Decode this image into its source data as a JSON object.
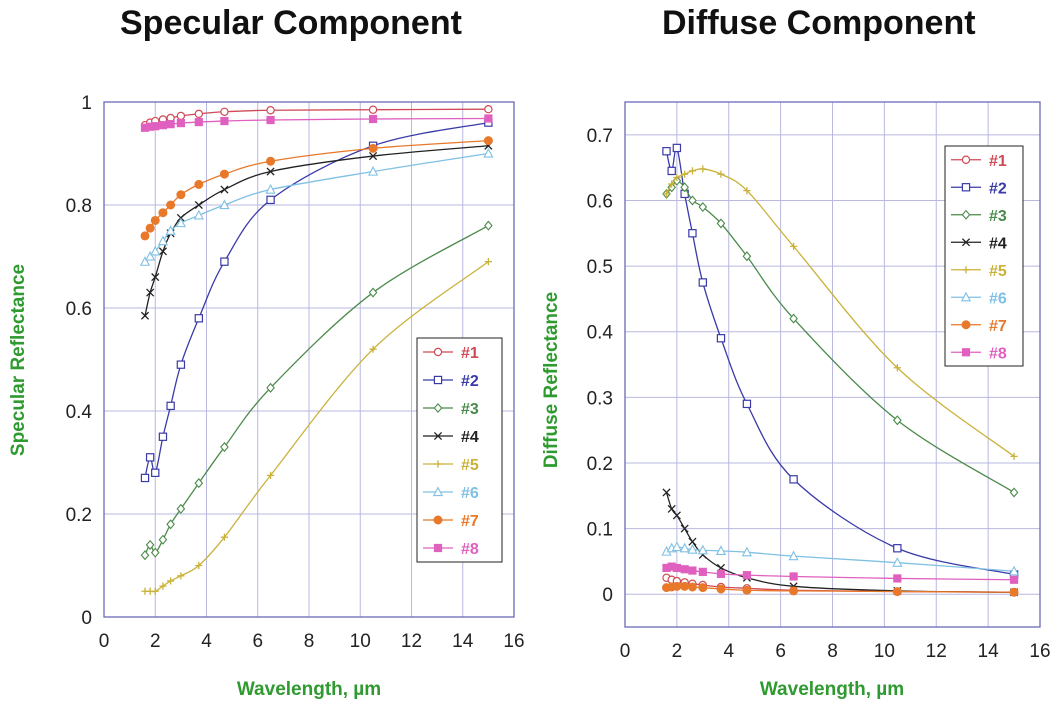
{
  "titles": {
    "left": "Specular Component",
    "right": "Diffuse Component"
  },
  "chart_data": [
    {
      "type": "line",
      "title": "Specular Component",
      "xlabel": "Wavelength, µm",
      "ylabel": "Specular Reflectance",
      "xlim": [
        0,
        16
      ],
      "ylim": [
        0,
        1
      ],
      "xticks": [
        0,
        2,
        4,
        6,
        8,
        10,
        12,
        14,
        16
      ],
      "yticks": [
        0,
        0.2,
        0.4,
        0.6,
        0.8,
        1
      ],
      "ytick_labels": [
        "0",
        "0.2",
        "0.4",
        "0.6",
        "0.8",
        "1"
      ],
      "grid": true,
      "legend_position": "right-middle",
      "series": [
        {
          "name": "#1",
          "color": "#d04a55",
          "marker": "circle-open",
          "x": [
            1.6,
            1.8,
            2.0,
            2.3,
            2.6,
            3.0,
            3.7,
            4.7,
            6.5,
            10.5,
            15.0
          ],
          "y": [
            0.955,
            0.96,
            0.963,
            0.966,
            0.969,
            0.973,
            0.977,
            0.981,
            0.984,
            0.985,
            0.986
          ]
        },
        {
          "name": "#2",
          "color": "#3a3aa8",
          "marker": "square-open",
          "x": [
            1.6,
            1.8,
            2.0,
            2.3,
            2.6,
            3.0,
            3.7,
            4.7,
            6.5,
            10.5,
            15.0
          ],
          "y": [
            0.27,
            0.31,
            0.28,
            0.35,
            0.41,
            0.49,
            0.58,
            0.69,
            0.81,
            0.915,
            0.96
          ]
        },
        {
          "name": "#3",
          "color": "#4a8a4a",
          "marker": "diamond-open",
          "x": [
            1.6,
            1.8,
            2.0,
            2.3,
            2.6,
            3.0,
            3.7,
            4.7,
            6.5,
            10.5,
            15.0
          ],
          "y": [
            0.12,
            0.14,
            0.125,
            0.15,
            0.18,
            0.21,
            0.26,
            0.33,
            0.445,
            0.63,
            0.76
          ]
        },
        {
          "name": "#4",
          "color": "#222222",
          "marker": "x",
          "x": [
            1.6,
            1.8,
            2.0,
            2.3,
            2.6,
            3.0,
            3.7,
            4.7,
            6.5,
            10.5,
            15.0
          ],
          "y": [
            0.585,
            0.63,
            0.66,
            0.71,
            0.745,
            0.775,
            0.8,
            0.83,
            0.865,
            0.895,
            0.915
          ]
        },
        {
          "name": "#5",
          "color": "#c9b23a",
          "marker": "plus",
          "x": [
            1.6,
            1.8,
            2.0,
            2.3,
            2.6,
            3.0,
            3.7,
            4.7,
            6.5,
            10.5,
            15.0
          ],
          "y": [
            0.05,
            0.05,
            0.05,
            0.06,
            0.07,
            0.08,
            0.1,
            0.155,
            0.275,
            0.52,
            0.69
          ]
        },
        {
          "name": "#6",
          "color": "#7fc0e3",
          "marker": "triangle-open",
          "x": [
            1.6,
            1.8,
            2.0,
            2.3,
            2.6,
            3.0,
            3.7,
            4.7,
            6.5,
            10.5,
            15.0
          ],
          "y": [
            0.69,
            0.7,
            0.71,
            0.73,
            0.75,
            0.765,
            0.78,
            0.8,
            0.83,
            0.865,
            0.9
          ]
        },
        {
          "name": "#7",
          "color": "#e8782a",
          "marker": "circle-filled",
          "x": [
            1.6,
            1.8,
            2.0,
            2.3,
            2.6,
            3.0,
            3.7,
            4.7,
            6.5,
            10.5,
            15.0
          ],
          "y": [
            0.74,
            0.755,
            0.77,
            0.785,
            0.8,
            0.82,
            0.84,
            0.86,
            0.885,
            0.91,
            0.925
          ]
        },
        {
          "name": "#8",
          "color": "#e060c0",
          "marker": "square-filled",
          "x": [
            1.6,
            1.8,
            2.0,
            2.3,
            2.6,
            3.0,
            3.7,
            4.7,
            6.5,
            10.5,
            15.0
          ],
          "y": [
            0.95,
            0.952,
            0.953,
            0.955,
            0.957,
            0.959,
            0.961,
            0.963,
            0.965,
            0.967,
            0.968
          ]
        }
      ]
    },
    {
      "type": "line",
      "title": "Diffuse Component",
      "xlabel": "Wavelength, µm",
      "ylabel": "Diffuse Reflectance",
      "xlim": [
        0,
        16
      ],
      "ylim": [
        -0.05,
        0.75
      ],
      "xticks": [
        0,
        2,
        4,
        6,
        8,
        10,
        12,
        14,
        16
      ],
      "yticks": [
        0,
        0.1,
        0.2,
        0.3,
        0.4,
        0.5,
        0.6,
        0.7
      ],
      "ytick_labels": [
        "0",
        "0.1",
        "0.2",
        "0.3",
        "0.4",
        "0.5",
        "0.6",
        "0.7"
      ],
      "grid": true,
      "legend_position": "top-right",
      "series": [
        {
          "name": "#1",
          "color": "#d04a55",
          "marker": "circle-open",
          "x": [
            1.6,
            1.8,
            2.0,
            2.3,
            2.6,
            3.0,
            3.7,
            4.7,
            6.5,
            10.5,
            15.0
          ],
          "y": [
            0.025,
            0.022,
            0.02,
            0.018,
            0.016,
            0.014,
            0.011,
            0.009,
            0.006,
            0.004,
            0.003
          ]
        },
        {
          "name": "#2",
          "color": "#3a3aa8",
          "marker": "square-open",
          "x": [
            1.6,
            1.8,
            2.0,
            2.3,
            2.6,
            3.0,
            3.7,
            4.7,
            6.5,
            10.5,
            15.0
          ],
          "y": [
            0.675,
            0.645,
            0.68,
            0.61,
            0.55,
            0.475,
            0.39,
            0.29,
            0.175,
            0.07,
            0.03
          ]
        },
        {
          "name": "#3",
          "color": "#4a8a4a",
          "marker": "diamond-open",
          "x": [
            1.6,
            1.8,
            2.0,
            2.3,
            2.6,
            3.0,
            3.7,
            4.7,
            6.5,
            10.5,
            15.0
          ],
          "y": [
            0.61,
            0.62,
            0.63,
            0.62,
            0.6,
            0.59,
            0.565,
            0.515,
            0.42,
            0.265,
            0.155
          ]
        },
        {
          "name": "#4",
          "color": "#222222",
          "marker": "x",
          "x": [
            1.6,
            1.8,
            2.0,
            2.3,
            2.6,
            3.0,
            3.7,
            4.7,
            6.5,
            10.5,
            15.0
          ],
          "y": [
            0.155,
            0.13,
            0.12,
            0.1,
            0.08,
            0.06,
            0.04,
            0.025,
            0.012,
            0.005,
            0.003
          ]
        },
        {
          "name": "#5",
          "color": "#c9b23a",
          "marker": "plus",
          "x": [
            1.6,
            1.8,
            2.0,
            2.3,
            2.6,
            3.0,
            3.7,
            4.7,
            6.5,
            10.5,
            15.0
          ],
          "y": [
            0.61,
            0.625,
            0.635,
            0.64,
            0.645,
            0.648,
            0.64,
            0.615,
            0.53,
            0.345,
            0.21
          ]
        },
        {
          "name": "#6",
          "color": "#7fc0e3",
          "marker": "triangle-open",
          "x": [
            1.6,
            1.8,
            2.0,
            2.3,
            2.6,
            3.0,
            3.7,
            4.7,
            6.5,
            10.5,
            15.0
          ],
          "y": [
            0.065,
            0.07,
            0.072,
            0.07,
            0.068,
            0.067,
            0.066,
            0.064,
            0.058,
            0.048,
            0.035
          ]
        },
        {
          "name": "#7",
          "color": "#e8782a",
          "marker": "circle-filled",
          "x": [
            1.6,
            1.8,
            2.0,
            2.3,
            2.6,
            3.0,
            3.7,
            4.7,
            6.5,
            10.5,
            15.0
          ],
          "y": [
            0.01,
            0.011,
            0.012,
            0.012,
            0.011,
            0.01,
            0.008,
            0.006,
            0.005,
            0.004,
            0.003
          ]
        },
        {
          "name": "#8",
          "color": "#e060c0",
          "marker": "square-filled",
          "x": [
            1.6,
            1.8,
            2.0,
            2.3,
            2.6,
            3.0,
            3.7,
            4.7,
            6.5,
            10.5,
            15.0
          ],
          "y": [
            0.04,
            0.042,
            0.04,
            0.038,
            0.036,
            0.034,
            0.031,
            0.029,
            0.027,
            0.024,
            0.022
          ]
        }
      ]
    }
  ]
}
